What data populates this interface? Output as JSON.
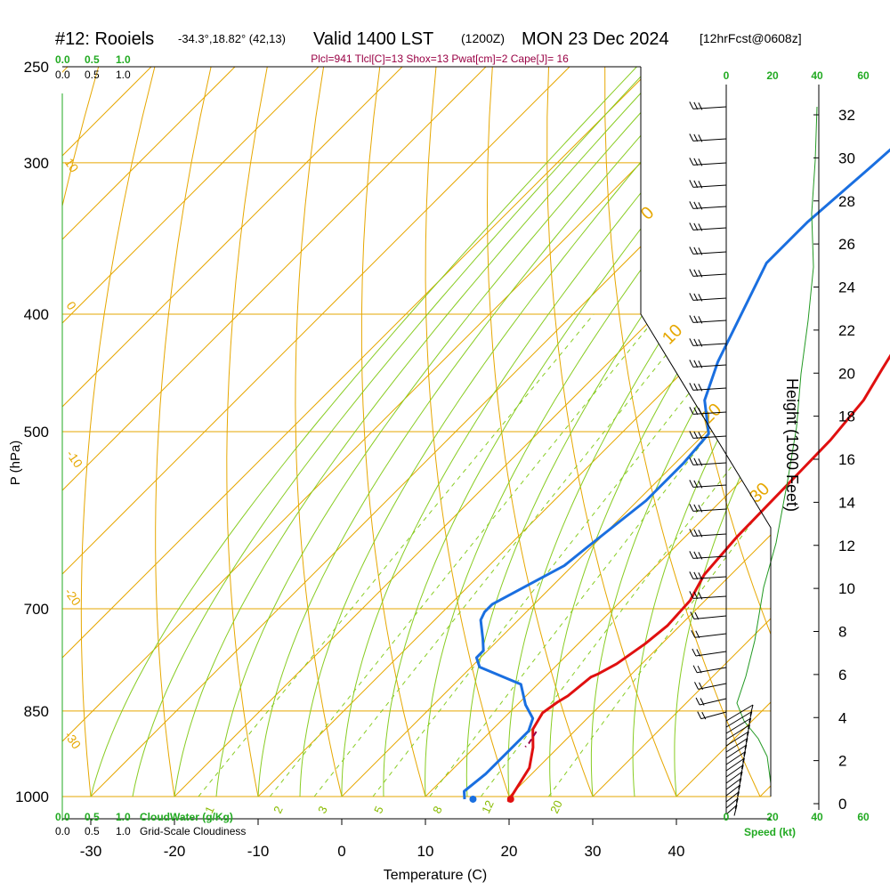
{
  "header": {
    "station": "#12: Rooiels",
    "coords": "-34.3°,18.82° (42,13)",
    "valid": "Valid 1400 LST",
    "utc": "(1200Z)",
    "date": "MON 23 Dec 2024",
    "fcst": "[12hrFcst@0608z]"
  },
  "stats": "Plcl=941 Tlcl[C]=13 Shox=13 Pwat[cm]=2 Cape[J]= 16",
  "cloud_scale": {
    "green": [
      "0.0",
      "0.5",
      "1.0"
    ],
    "black": [
      "0.0",
      "0.5",
      "1.0"
    ],
    "cloudwater_label": "CloudWater (g/Kg)",
    "cloudiness_label": "Grid-Scale Cloudiness"
  },
  "wind_scale": {
    "ticks": [
      "0",
      "20",
      "40",
      "60"
    ],
    "speed_label": "Speed (kt)"
  },
  "chart_data": {
    "type": "line",
    "xlabel": "Temperature (C)",
    "ylabel": "P (hPa)",
    "y2label": "Height (1000 Feet)",
    "x_ticks": [
      -30,
      -20,
      -10,
      0,
      10,
      20,
      30,
      40
    ],
    "p_ticks": [
      250,
      300,
      400,
      500,
      700,
      850,
      1000
    ],
    "height_ticks": [
      0,
      2,
      4,
      6,
      8,
      10,
      12,
      14,
      16,
      18,
      20,
      22,
      24,
      26,
      28,
      30,
      32
    ],
    "isotherm_labels": [
      "0",
      "10",
      "20",
      "30"
    ],
    "dry_adiabat_labels": [
      "10",
      "0",
      "-10",
      "-20",
      "-30"
    ],
    "mixing_ratio_labels": [
      "1",
      "2",
      "3",
      "5",
      "8",
      "12",
      "20"
    ],
    "series": [
      {
        "name": "",
        "color": "#e01010",
        "points": [
          [
            -0.5,
            267
          ],
          [
            2.5,
            312
          ],
          [
            8.5,
            374
          ],
          [
            12.0,
            417
          ],
          [
            13.5,
            444
          ],
          [
            15.0,
            471
          ],
          [
            15.8,
            508
          ],
          [
            16.0,
            553
          ],
          [
            16.2,
            611
          ],
          [
            16.8,
            656
          ],
          [
            18.2,
            689
          ],
          [
            18.5,
            723
          ],
          [
            18.0,
            748
          ],
          [
            17.0,
            777
          ],
          [
            16.0,
            792
          ],
          [
            15.5,
            797
          ],
          [
            15.0,
            826
          ],
          [
            14.5,
            836
          ],
          [
            14.0,
            853
          ],
          [
            14.8,
            880
          ],
          [
            17.0,
            911
          ],
          [
            19.0,
            947
          ],
          [
            20.5,
            1010
          ]
        ]
      },
      {
        "name": "",
        "color": "#1a6fe0",
        "points": [
          [
            -11.0,
            267
          ],
          [
            -12.0,
            302
          ],
          [
            -13.0,
            336
          ],
          [
            -13.0,
            363
          ],
          [
            -9.5,
            405
          ],
          [
            -7.0,
            438
          ],
          [
            -4.0,
            471
          ],
          [
            0.5,
            502
          ],
          [
            1.0,
            531
          ],
          [
            1.0,
            570
          ],
          [
            -0.5,
            624
          ],
          [
            -1.0,
            645
          ],
          [
            -3.0,
            669
          ],
          [
            -5.0,
            694
          ],
          [
            -5.0,
            704
          ],
          [
            -4.5,
            715
          ],
          [
            -2.0,
            741
          ],
          [
            -0.5,
            758
          ],
          [
            -0.5,
            768
          ],
          [
            1.0,
            782
          ],
          [
            8.0,
            808
          ],
          [
            11.0,
            840
          ],
          [
            13.5,
            862
          ],
          [
            14.5,
            883
          ],
          [
            14.5,
            958
          ],
          [
            14.0,
            990
          ],
          [
            15.0,
            1005
          ]
        ]
      },
      {
        "name": "",
        "color": "#990044",
        "points": [
          [
            15.5,
            884
          ],
          [
            16.0,
            904
          ],
          [
            16.0,
            910
          ]
        ]
      }
    ],
    "surface_temp": 20.5,
    "surface_dewpoint": 16.0
  }
}
